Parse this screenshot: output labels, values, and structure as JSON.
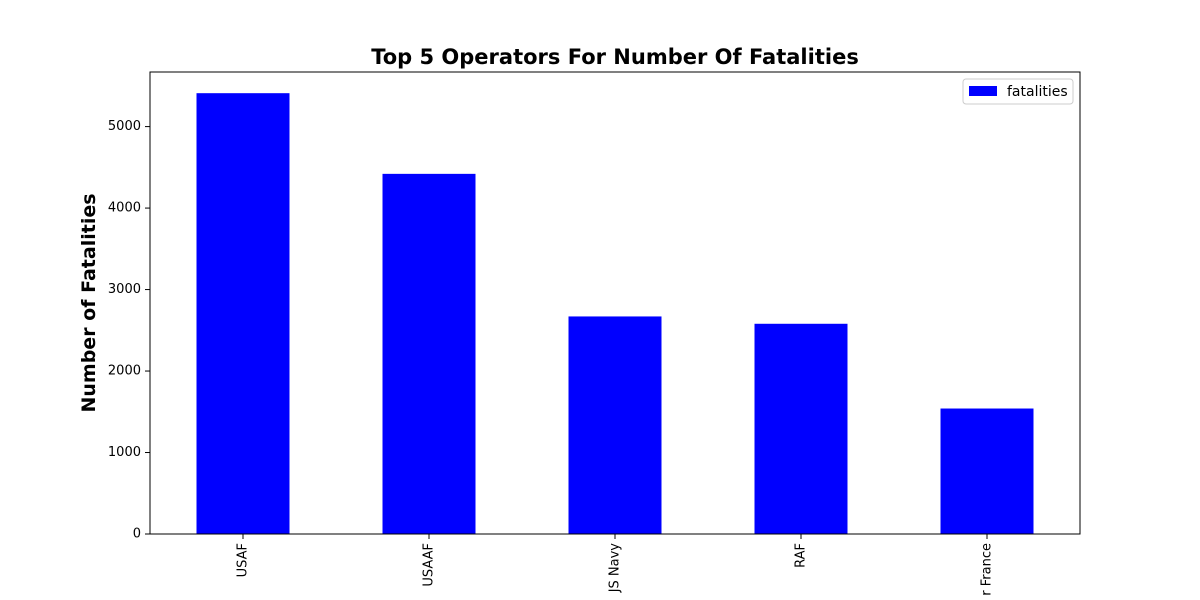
{
  "chart_data": {
    "type": "bar",
    "title": "Top 5 Operators For Number Of Fatalities",
    "xlabel": "",
    "ylabel": "Number of Fatalities",
    "categories": [
      "USAF",
      "USAAF",
      "JS Navy",
      "RAF",
      "r France"
    ],
    "series": [
      {
        "name": "fatalities",
        "values": [
          5410,
          4420,
          2670,
          2580,
          1540
        ],
        "color": "#0000ff"
      }
    ],
    "ylim": [
      0,
      5670
    ],
    "yticks": [
      0,
      1000,
      2000,
      3000,
      4000,
      5000
    ],
    "grid": false,
    "legend_position": "top-right"
  }
}
